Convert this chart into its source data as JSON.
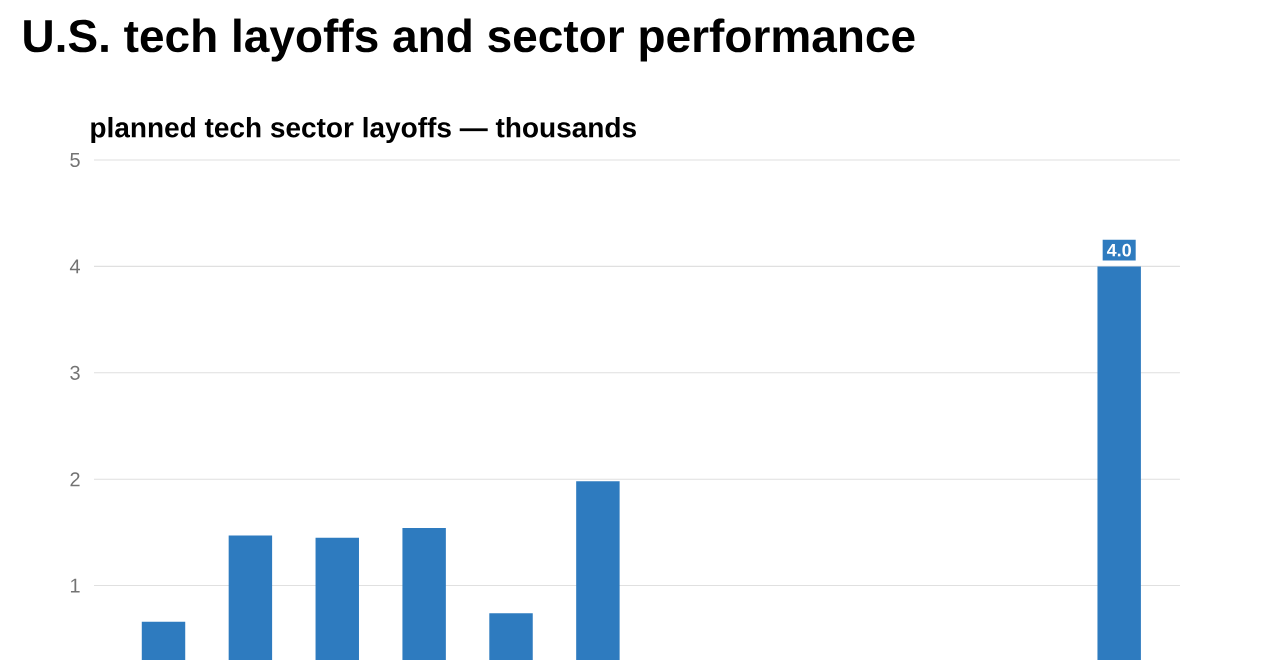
{
  "chart_data": {
    "type": "bar",
    "title": "U.S. tech layoffs and sector performance",
    "subtitle": "planned tech sector layoffs — thousands",
    "categories": [
      null,
      null,
      null,
      null,
      null,
      null,
      null,
      null,
      null,
      null,
      null,
      null
    ],
    "values": [
      0.66,
      1.47,
      1.45,
      1.54,
      0.74,
      1.98,
      null,
      null,
      null,
      null,
      null,
      4.0
    ],
    "value_labels": [
      null,
      null,
      null,
      null,
      null,
      null,
      null,
      null,
      null,
      null,
      null,
      "4.0"
    ],
    "color": "#2e7bbf",
    "ylim": [
      0.3,
      5
    ],
    "yticks": [
      1,
      2,
      3,
      4,
      5
    ],
    "grid": "y",
    "tick_labels": "y"
  }
}
